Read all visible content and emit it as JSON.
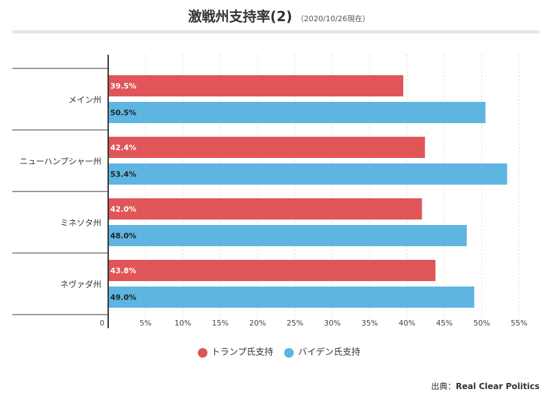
{
  "header": {
    "title": "激戦州支持率(2)",
    "subtitle": "（2020/10/26現在）"
  },
  "chart_data": {
    "type": "bar",
    "orientation": "horizontal",
    "categories": [
      "メイン州",
      "ニューハンプシャー州",
      "ミネソタ州",
      "ネヴァダ州"
    ],
    "series": [
      {
        "name": "トランプ氏支持",
        "color": "#e05558",
        "values": [
          39.5,
          42.4,
          42.0,
          43.8
        ],
        "labels": [
          "39.5%",
          "42.4%",
          "42.0%",
          "43.8%"
        ]
      },
      {
        "name": "バイデン氏支持",
        "color": "#5eb5e2",
        "values": [
          50.5,
          53.4,
          48.0,
          49.0
        ],
        "labels": [
          "50.5%",
          "53.4%",
          "48.0%",
          "49.0%"
        ]
      }
    ],
    "xlim": [
      0,
      57
    ],
    "ticks": [
      0,
      5,
      10,
      15,
      20,
      25,
      30,
      35,
      40,
      45,
      50,
      55
    ],
    "tick_labels": [
      "0",
      "5%",
      "10%",
      "15%",
      "20%",
      "25%",
      "30%",
      "35%",
      "40%",
      "45%",
      "50%",
      "55%"
    ],
    "grid": true,
    "legend_position": "bottom"
  },
  "footer": {
    "source_prefix": "出典：",
    "source_name": "Real Clear Politics"
  }
}
